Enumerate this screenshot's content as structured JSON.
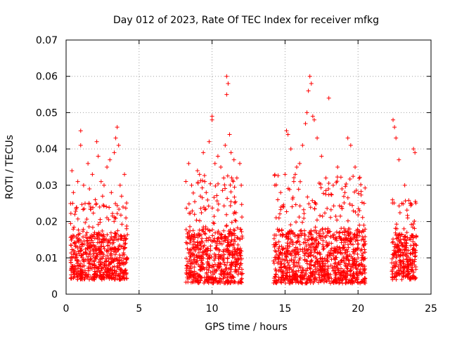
{
  "chart_data": {
    "type": "scatter",
    "title": "Day 012 of 2023, Rate Of TEC Index for receiver mfkg",
    "xlabel": "GPS time / hours",
    "ylabel": "ROTI / TECUs",
    "xlim": [
      0,
      25
    ],
    "ylim": [
      0,
      0.07
    ],
    "xticks": [
      0,
      5,
      10,
      15,
      20,
      25
    ],
    "xtick_labels": [
      "0",
      "5",
      "10",
      "15",
      "20",
      "25"
    ],
    "yticks": [
      0,
      0.01,
      0.02,
      0.03,
      0.04,
      0.05,
      0.06,
      0.07
    ],
    "ytick_labels": [
      "0",
      "0.01",
      "0.02",
      "0.03",
      "0.04",
      "0.05",
      "0.06",
      "0.07"
    ],
    "grid": true,
    "marker": "+",
    "color": "#ff0000",
    "series": [
      {
        "name": "ROTI",
        "segments": [
          {
            "range": [
              0.3,
              4.2
            ],
            "base": [
              0.004,
              0.017
            ],
            "peak": 0.046
          },
          {
            "range": [
              8.2,
              12.1
            ],
            "base": [
              0.003,
              0.018
            ],
            "peak": 0.06
          },
          {
            "range": [
              14.2,
              20.5
            ],
            "base": [
              0.003,
              0.018
            ],
            "peak": 0.06
          },
          {
            "range": [
              22.3,
              24.0
            ],
            "base": [
              0.004,
              0.017
            ],
            "peak": 0.048
          }
        ],
        "x": [
          0.4,
          0.5,
          0.6,
          0.8,
          1.0,
          1.0,
          1.2,
          1.3,
          1.5,
          1.6,
          1.8,
          2.0,
          2.1,
          2.2,
          2.3,
          2.4,
          2.5,
          2.6,
          2.8,
          3.0,
          3.1,
          3.3,
          3.4,
          3.5,
          3.6,
          3.7,
          3.8,
          3.9,
          4.0,
          4.1,
          8.4,
          8.6,
          8.8,
          9.0,
          9.2,
          9.4,
          9.5,
          9.6,
          9.8,
          10.0,
          10.0,
          10.2,
          10.4,
          10.6,
          10.8,
          10.9,
          11.0,
          11.0,
          11.1,
          11.2,
          11.3,
          11.5,
          11.7,
          11.9,
          12.0,
          14.3,
          14.5,
          14.7,
          14.9,
          15.0,
          15.1,
          15.2,
          15.4,
          15.6,
          15.8,
          16.0,
          16.2,
          16.4,
          16.5,
          16.6,
          16.7,
          16.8,
          16.9,
          17.0,
          17.2,
          17.5,
          17.8,
          18.0,
          18.3,
          18.6,
          18.9,
          19.1,
          19.3,
          19.5,
          19.8,
          20.1,
          20.4,
          22.4,
          22.5,
          22.6,
          22.8,
          23.0,
          23.2,
          23.4,
          23.6,
          23.8,
          23.9
        ],
        "y": [
          0.034,
          0.028,
          0.022,
          0.031,
          0.045,
          0.041,
          0.03,
          0.025,
          0.036,
          0.029,
          0.033,
          0.026,
          0.042,
          0.038,
          0.024,
          0.031,
          0.027,
          0.03,
          0.035,
          0.037,
          0.028,
          0.039,
          0.043,
          0.046,
          0.041,
          0.03,
          0.027,
          0.024,
          0.033,
          0.021,
          0.036,
          0.03,
          0.022,
          0.034,
          0.027,
          0.039,
          0.031,
          0.028,
          0.042,
          0.049,
          0.048,
          0.036,
          0.038,
          0.035,
          0.032,
          0.041,
          0.055,
          0.06,
          0.058,
          0.044,
          0.039,
          0.037,
          0.032,
          0.036,
          0.03,
          0.03,
          0.026,
          0.028,
          0.024,
          0.033,
          0.045,
          0.044,
          0.04,
          0.031,
          0.035,
          0.036,
          0.041,
          0.047,
          0.05,
          0.056,
          0.06,
          0.058,
          0.049,
          0.048,
          0.043,
          0.038,
          0.032,
          0.054,
          0.03,
          0.035,
          0.029,
          0.028,
          0.043,
          0.041,
          0.035,
          0.023,
          0.019,
          0.048,
          0.046,
          0.043,
          0.037,
          0.025,
          0.03,
          0.021,
          0.025,
          0.04,
          0.039
        ]
      }
    ]
  }
}
